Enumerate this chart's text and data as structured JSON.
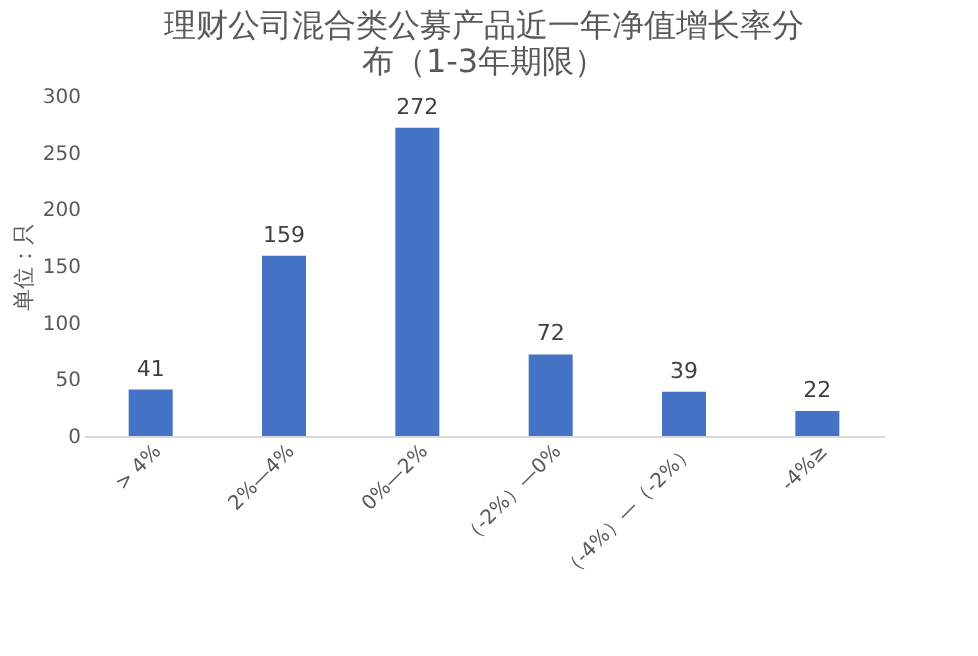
{
  "chart_data": {
    "type": "bar",
    "title": [
      "理财公司混合类公募产品近一年净值增长率分",
      "布（1-3年期限）"
    ],
    "ylabel": "单位：只",
    "categories": [
      "> 4%",
      "2%—4%",
      "0%—2%",
      "（-2%）—0%",
      "（-4%）—（-2%）",
      "-4%≥"
    ],
    "values": [
      41,
      159,
      272,
      72,
      39,
      22
    ],
    "color": "#4472c4",
    "ylim": [
      0,
      300
    ],
    "yticks": [
      0,
      50,
      100,
      150,
      200,
      250,
      300
    ],
    "data_labels": true,
    "grid": false
  }
}
